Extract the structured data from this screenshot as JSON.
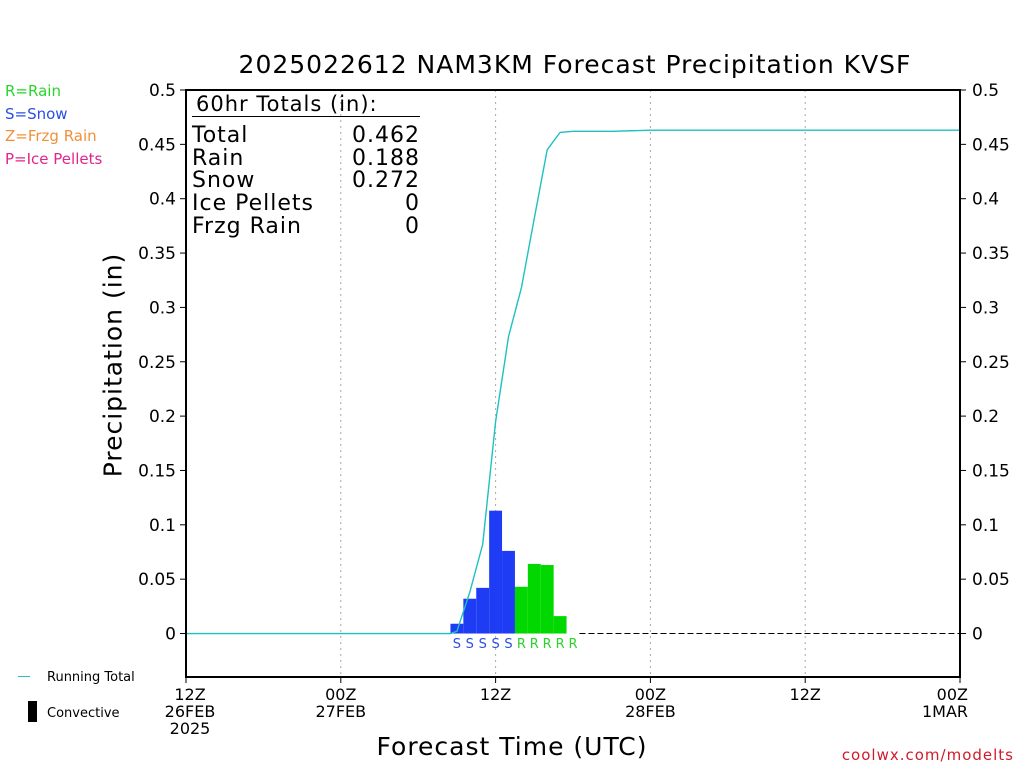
{
  "title": "2025022612 NAM3KM Forecast Precipitation KVSF",
  "ptype_legend": [
    {
      "label": "R=Rain",
      "color": "#2ad42a"
    },
    {
      "label": "S=Snow",
      "color": "#2a4ee6"
    },
    {
      "label": "Z=Frzg Rain",
      "color": "#f0903a"
    },
    {
      "label": "P=Ice Pellets",
      "color": "#e0258e"
    }
  ],
  "totals": {
    "header": "60hr Totals (in):",
    "rows": [
      {
        "label": "Total",
        "value": "0.462"
      },
      {
        "label": "Rain",
        "value": "0.188"
      },
      {
        "label": "Snow",
        "value": "0.272"
      },
      {
        "label": "Ice Pellets",
        "value": "0"
      },
      {
        "label": "Frzg Rain",
        "value": "0"
      }
    ]
  },
  "bottom_legend": {
    "running_total": "Running Total",
    "convective": "Convective"
  },
  "credit": "coolwx.com/modelts",
  "colors": {
    "snow": "#1f3cf5",
    "rain": "#00d800",
    "running_total": "#1fc0c0",
    "ptype_rain": "#2ad42a",
    "ptype_snow": "#2a4ee6"
  },
  "chart_data": {
    "type": "bar",
    "title": "2025022612 NAM3KM Forecast Precipitation KVSF",
    "xlabel": "Forecast Time (UTC)",
    "ylabel": "Precipitation (in)",
    "x_unit": "forecast hour",
    "xlim": [
      0,
      60
    ],
    "ylim": [
      -0.04,
      0.5
    ],
    "yticks": [
      0,
      0.05,
      0.1,
      0.15,
      0.2,
      0.25,
      0.3,
      0.35,
      0.4,
      0.45,
      0.5
    ],
    "yticks_right": true,
    "grid": "vertical dotted at 12-hour intervals",
    "xticks": [
      {
        "x": 0,
        "lines": [
          "12Z",
          "26FEB",
          "2025"
        ]
      },
      {
        "x": 12,
        "lines": [
          "00Z",
          "27FEB"
        ]
      },
      {
        "x": 24,
        "lines": [
          "12Z"
        ]
      },
      {
        "x": 36,
        "lines": [
          "00Z",
          "28FEB"
        ]
      },
      {
        "x": 48,
        "lines": [
          "12Z"
        ]
      },
      {
        "x": 60,
        "lines": [
          "00Z",
          "1MAR"
        ]
      }
    ],
    "bars": [
      {
        "x": 21,
        "value": 0.009,
        "type": "snow",
        "label": "S"
      },
      {
        "x": 22,
        "value": 0.032,
        "type": "snow",
        "label": "S"
      },
      {
        "x": 23,
        "value": 0.042,
        "type": "snow",
        "label": "S"
      },
      {
        "x": 24,
        "value": 0.113,
        "type": "snow",
        "label": "S"
      },
      {
        "x": 25,
        "value": 0.076,
        "type": "snow",
        "label": "S"
      },
      {
        "x": 26,
        "value": 0.043,
        "type": "rain",
        "label": "R"
      },
      {
        "x": 27,
        "value": 0.064,
        "type": "rain",
        "label": "R"
      },
      {
        "x": 28,
        "value": 0.063,
        "type": "rain",
        "label": "R"
      },
      {
        "x": 29,
        "value": 0.016,
        "type": "rain",
        "label": "R"
      },
      {
        "x": 30,
        "value": 0,
        "type": "rain",
        "label": "R"
      }
    ],
    "running_total": {
      "name": "Running Total",
      "x": [
        0,
        20,
        20.5,
        21,
        22,
        23,
        24,
        25,
        26,
        27,
        28,
        29,
        30,
        33,
        36,
        60
      ],
      "y": [
        0,
        0,
        0,
        0.002,
        0.038,
        0.082,
        0.195,
        0.273,
        0.318,
        0.382,
        0.445,
        0.461,
        0.462,
        0.462,
        0.463,
        0.463
      ]
    }
  }
}
